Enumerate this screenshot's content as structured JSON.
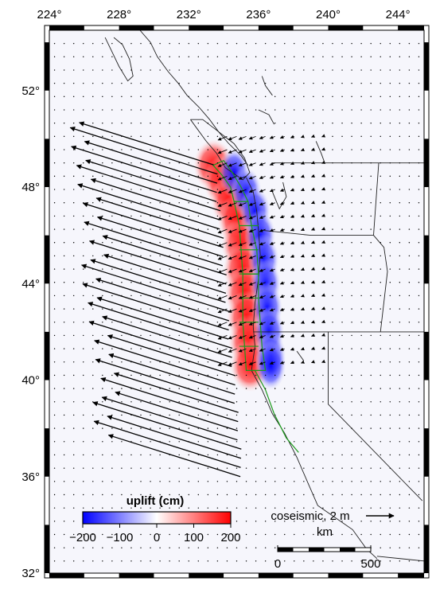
{
  "map": {
    "lon_ticks": [
      {
        "value": 224,
        "label": "224°"
      },
      {
        "value": 228,
        "label": "228°"
      },
      {
        "value": 232,
        "label": "232°"
      },
      {
        "value": 236,
        "label": "236°"
      },
      {
        "value": 240,
        "label": "240°"
      },
      {
        "value": 244,
        "label": "244°"
      }
    ],
    "lat_ticks": [
      {
        "value": 32,
        "label": "32°"
      },
      {
        "value": 36,
        "label": "36°"
      },
      {
        "value": 40,
        "label": "40°"
      },
      {
        "value": 44,
        "label": "44°"
      },
      {
        "value": 48,
        "label": "48°"
      },
      {
        "value": 52,
        "label": "52°"
      }
    ],
    "lon_range": [
      224,
      245.5
    ],
    "lat_range": [
      32,
      54.5
    ],
    "colors": {
      "uplift": "#ff0000",
      "subsidence": "#0000ff",
      "fault_outline": "#1a9a1a",
      "vector": "#000000"
    }
  },
  "colorbar": {
    "title": "uplift (cm)",
    "ticks": [
      "−200",
      "−100",
      "0",
      "100",
      "200"
    ],
    "range": [
      -200,
      200
    ]
  },
  "vector_legend": {
    "label": "coseismic, 2 m"
  },
  "scalebar": {
    "unit": "km",
    "start_label": "0",
    "end_label": "500"
  }
}
